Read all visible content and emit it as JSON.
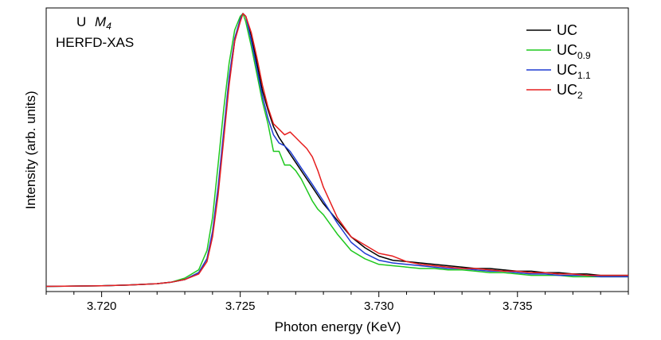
{
  "chart_data": {
    "type": "line",
    "xlabel": "Photon energy (KeV)",
    "ylabel": "Intensity (arb. units)",
    "xlim": [
      3.718,
      3.739
    ],
    "ylim": [
      0,
      1.0
    ],
    "xticks": [
      3.72,
      3.725,
      3.73,
      3.735
    ],
    "xtick_labels": [
      "3.720",
      "3.725",
      "3.730",
      "3.735"
    ],
    "yticks_visible": false,
    "grid": false,
    "legend_position": "top-right",
    "annotation": {
      "element": "U",
      "edge": "M",
      "edge_subscript": "4",
      "technique": "HERFD-XAS"
    },
    "series": [
      {
        "name": "UC",
        "name_base": "UC",
        "name_sub": "",
        "color": "#000000",
        "x": [
          3.718,
          3.72,
          3.721,
          3.722,
          3.7225,
          3.723,
          3.7235,
          3.7238,
          3.724,
          3.7242,
          3.7244,
          3.7246,
          3.7248,
          3.725,
          3.7251,
          3.7252,
          3.7254,
          3.7256,
          3.7258,
          3.726,
          3.7262,
          3.7264,
          3.7266,
          3.7268,
          3.727,
          3.7272,
          3.7274,
          3.7276,
          3.7278,
          3.728,
          3.7285,
          3.729,
          3.7295,
          3.73,
          3.7305,
          3.731,
          3.7315,
          3.732,
          3.7325,
          3.733,
          3.7335,
          3.734,
          3.7345,
          3.735,
          3.7355,
          3.736,
          3.7365,
          3.737,
          3.7375,
          3.738,
          3.7385,
          3.739
        ],
        "y": [
          0.01,
          0.012,
          0.015,
          0.02,
          0.025,
          0.035,
          0.06,
          0.11,
          0.2,
          0.35,
          0.55,
          0.75,
          0.9,
          0.98,
          1.0,
          0.99,
          0.92,
          0.82,
          0.72,
          0.65,
          0.59,
          0.55,
          0.52,
          0.49,
          0.46,
          0.43,
          0.4,
          0.37,
          0.34,
          0.31,
          0.25,
          0.19,
          0.15,
          0.12,
          0.105,
          0.1,
          0.095,
          0.09,
          0.085,
          0.08,
          0.075,
          0.075,
          0.07,
          0.065,
          0.065,
          0.06,
          0.06,
          0.055,
          0.055,
          0.05,
          0.05,
          0.05
        ]
      },
      {
        "name": "UC0.9",
        "name_base": "UC",
        "name_sub": "0.9",
        "color": "#1ec81e",
        "x": [
          3.718,
          3.72,
          3.721,
          3.722,
          3.7225,
          3.723,
          3.7235,
          3.7238,
          3.724,
          3.7242,
          3.7244,
          3.7246,
          3.7248,
          3.725,
          3.7251,
          3.7252,
          3.7254,
          3.7256,
          3.7258,
          3.726,
          3.7262,
          3.7264,
          3.7266,
          3.7268,
          3.727,
          3.7272,
          3.7274,
          3.7276,
          3.7278,
          3.728,
          3.7285,
          3.729,
          3.7295,
          3.73,
          3.7305,
          3.731,
          3.7315,
          3.732,
          3.7325,
          3.733,
          3.7335,
          3.734,
          3.7345,
          3.735,
          3.7355,
          3.736,
          3.7365,
          3.737,
          3.7375,
          3.738,
          3.7385,
          3.739
        ],
        "y": [
          0.01,
          0.012,
          0.015,
          0.02,
          0.025,
          0.04,
          0.07,
          0.14,
          0.26,
          0.45,
          0.65,
          0.82,
          0.94,
          0.99,
          1.0,
          0.97,
          0.88,
          0.78,
          0.68,
          0.6,
          0.5,
          0.5,
          0.45,
          0.45,
          0.43,
          0.4,
          0.36,
          0.32,
          0.29,
          0.27,
          0.2,
          0.14,
          0.11,
          0.09,
          0.085,
          0.08,
          0.075,
          0.075,
          0.07,
          0.07,
          0.065,
          0.06,
          0.06,
          0.055,
          0.05,
          0.05,
          0.05,
          0.045,
          0.045,
          0.045,
          0.045,
          0.045
        ]
      },
      {
        "name": "UC1.1",
        "name_base": "UC",
        "name_sub": "1.1",
        "color": "#1e3cd2",
        "x": [
          3.718,
          3.72,
          3.721,
          3.722,
          3.7225,
          3.723,
          3.7235,
          3.7238,
          3.724,
          3.7242,
          3.7244,
          3.7246,
          3.7248,
          3.725,
          3.7251,
          3.7252,
          3.7254,
          3.7256,
          3.7258,
          3.726,
          3.7262,
          3.7264,
          3.7266,
          3.7268,
          3.727,
          3.7272,
          3.7274,
          3.7276,
          3.7278,
          3.728,
          3.7285,
          3.729,
          3.7295,
          3.73,
          3.7305,
          3.731,
          3.7315,
          3.732,
          3.7325,
          3.733,
          3.7335,
          3.734,
          3.7345,
          3.735,
          3.7355,
          3.736,
          3.7365,
          3.737,
          3.7375,
          3.738,
          3.7385,
          3.739
        ],
        "y": [
          0.01,
          0.012,
          0.015,
          0.02,
          0.025,
          0.035,
          0.06,
          0.11,
          0.21,
          0.37,
          0.57,
          0.77,
          0.91,
          0.98,
          1.0,
          0.99,
          0.9,
          0.8,
          0.7,
          0.62,
          0.56,
          0.53,
          0.52,
          0.5,
          0.47,
          0.44,
          0.41,
          0.38,
          0.35,
          0.32,
          0.24,
          0.17,
          0.13,
          0.105,
          0.095,
          0.09,
          0.085,
          0.08,
          0.075,
          0.075,
          0.07,
          0.065,
          0.065,
          0.06,
          0.055,
          0.055,
          0.05,
          0.05,
          0.05,
          0.045,
          0.045,
          0.045
        ]
      },
      {
        "name": "UC2",
        "name_base": "UC",
        "name_sub": "2",
        "color": "#e61e1e",
        "x": [
          3.718,
          3.72,
          3.721,
          3.722,
          3.7225,
          3.723,
          3.7235,
          3.7238,
          3.724,
          3.7242,
          3.7244,
          3.7246,
          3.7248,
          3.725,
          3.7251,
          3.7252,
          3.7254,
          3.7256,
          3.7258,
          3.726,
          3.7262,
          3.7264,
          3.7266,
          3.7268,
          3.727,
          3.7272,
          3.7274,
          3.7276,
          3.7278,
          3.728,
          3.7285,
          3.729,
          3.7295,
          3.73,
          3.7305,
          3.731,
          3.7315,
          3.732,
          3.7325,
          3.733,
          3.7335,
          3.734,
          3.7345,
          3.735,
          3.7355,
          3.736,
          3.7365,
          3.737,
          3.7375,
          3.738,
          3.7385,
          3.739
        ],
        "y": [
          0.01,
          0.012,
          0.015,
          0.02,
          0.025,
          0.035,
          0.055,
          0.1,
          0.19,
          0.34,
          0.54,
          0.74,
          0.9,
          0.97,
          1.0,
          0.99,
          0.93,
          0.84,
          0.74,
          0.66,
          0.6,
          0.58,
          0.56,
          0.57,
          0.55,
          0.53,
          0.51,
          0.48,
          0.43,
          0.37,
          0.26,
          0.19,
          0.16,
          0.13,
          0.12,
          0.1,
          0.09,
          0.085,
          0.08,
          0.075,
          0.075,
          0.07,
          0.065,
          0.065,
          0.06,
          0.06,
          0.055,
          0.055,
          0.05,
          0.05,
          0.05,
          0.05
        ]
      }
    ]
  }
}
